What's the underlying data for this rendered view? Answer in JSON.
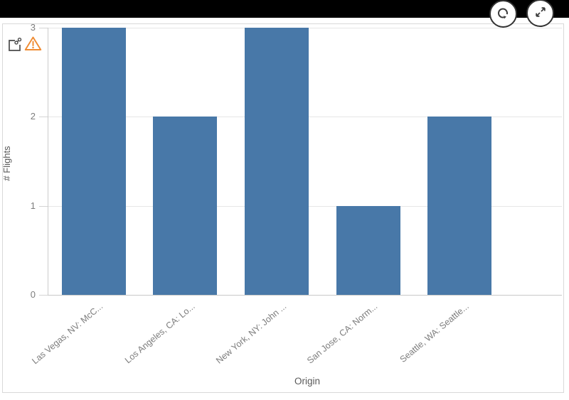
{
  "toolbar": {
    "refresh_button": {
      "icon": "refresh-icon"
    },
    "expand_button": {
      "icon": "expand-icon"
    }
  },
  "chart_header": {
    "icons": [
      {
        "name": "exploration-link-icon"
      },
      {
        "name": "warning-triangle-icon"
      }
    ]
  },
  "chart_data": {
    "type": "bar",
    "title": "",
    "categories": [
      "Las Vegas, NV: McC...",
      "Los Angeles, CA: Lo...",
      "New York, NY: John ...",
      "San Jose, CA: Norm...",
      "Seattle, WA: Seattle..."
    ],
    "values": [
      3,
      2,
      3,
      1,
      2
    ],
    "xlabel": "Origin",
    "ylabel": "# Flights",
    "ylim": [
      0,
      3
    ],
    "yticks": [
      "0",
      "1",
      "2",
      "3"
    ],
    "grid": true,
    "legend": false,
    "bar_color": "#4878a8"
  },
  "colors": {
    "bar": "#4878a8",
    "axis_line": "#cccccc",
    "gridline": "#e6e6e6",
    "tick_label": "#7d7d7d",
    "axis_title": "#595959",
    "warning": "#ef8b32",
    "icon_dark": "#404040",
    "card_border": "#d9d9d9",
    "top_bar": "#000000"
  }
}
